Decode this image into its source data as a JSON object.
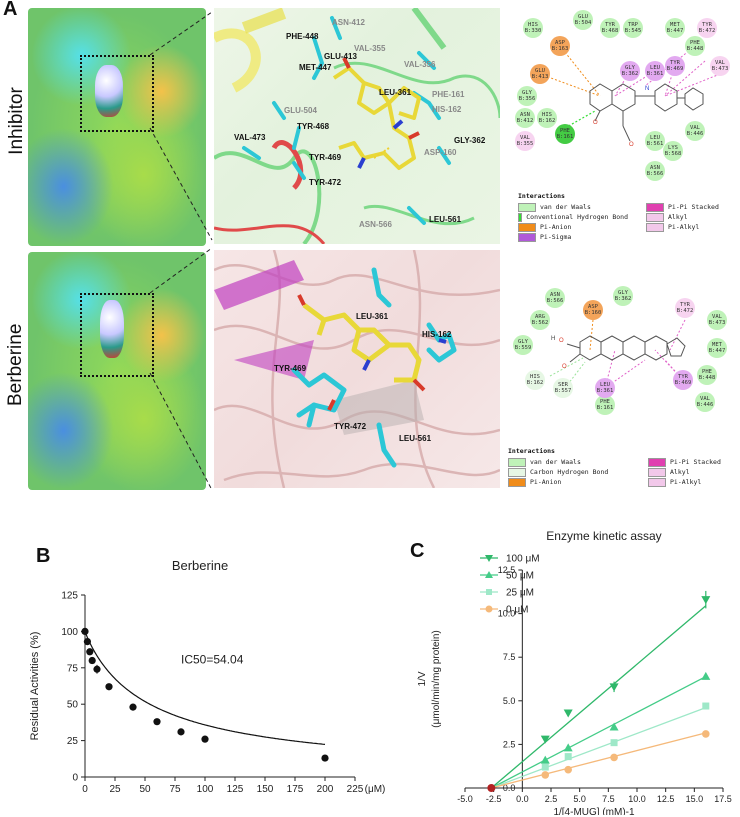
{
  "panels": {
    "a_letter": "A",
    "b_letter": "B",
    "c_letter": "C"
  },
  "rows": {
    "inhibitor": "Inhibitor",
    "berberine": "Berberine"
  },
  "inhibitor_3d_residues": [
    "PHE-448",
    "ASN-412",
    "MET-447",
    "GLU-413",
    "VAL-355",
    "VAL-356",
    "GLU-504",
    "LEU-361",
    "PHE-161",
    "HIS-162",
    "TYR-468",
    "VAL-473",
    "GLY-362",
    "TYR-469",
    "ASP-160",
    "TYR-472",
    "ASN-566",
    "LEU-561",
    "HIS-330",
    "LYS-568"
  ],
  "berberine_3d_residues": [
    "LEU-361",
    "HIS-162",
    "TYR-469",
    "TYR-472",
    "LEU-561"
  ],
  "inhibitor_2d_nodes": [
    {
      "id": "HIS\nB:330",
      "c": "#bff2b8"
    },
    {
      "id": "GLU\nB:504",
      "c": "#bff2b8"
    },
    {
      "id": "TYR\nB:468",
      "c": "#bff2b8"
    },
    {
      "id": "TRP\nB:545",
      "c": "#bff2b8"
    },
    {
      "id": "MET\nB:447",
      "c": "#bff2b8"
    },
    {
      "id": "TYR\nB:472",
      "c": "#f7d4f0"
    },
    {
      "id": "ASP\nB:163",
      "c": "#f3a45a"
    },
    {
      "id": "PHE\nB:448",
      "c": "#bff2b8"
    },
    {
      "id": "VAL\nB:473",
      "c": "#f7d4f0"
    },
    {
      "id": "GLU\nB:413",
      "c": "#f3a45a"
    },
    {
      "id": "GLY\nB:356",
      "c": "#bff2b8"
    },
    {
      "id": "LEU\nB:361",
      "c": "#e2a9f0"
    },
    {
      "id": "GLY\nB:362",
      "c": "#e2a9f0"
    },
    {
      "id": "TYR\nB:469",
      "c": "#e2a9f0"
    },
    {
      "id": "ASN\nB:412",
      "c": "#bff2b8"
    },
    {
      "id": "HIS\nB:162",
      "c": "#bff2b8"
    },
    {
      "id": "VAL\nB:355",
      "c": "#f7d4f0"
    },
    {
      "id": "PHE\nB:161",
      "c": "#44cc44"
    },
    {
      "id": "LEU\nB:561",
      "c": "#bff2b8"
    },
    {
      "id": "LYS\nB:568",
      "c": "#bff2b8"
    },
    {
      "id": "VAL\nB:446",
      "c": "#bff2b8"
    },
    {
      "id": "ASN\nB:566",
      "c": "#bff2b8"
    }
  ],
  "berberine_2d_nodes": [
    {
      "id": "ASN\nB:566",
      "c": "#bff2b8"
    },
    {
      "id": "ASP\nB:160",
      "c": "#f3a45a"
    },
    {
      "id": "GLY\nB:362",
      "c": "#bff2b8"
    },
    {
      "id": "TYR\nB:472",
      "c": "#f7d4f0"
    },
    {
      "id": "ARG\nB:562",
      "c": "#bff2b8"
    },
    {
      "id": "VAL\nB:473",
      "c": "#bff2b8"
    },
    {
      "id": "GLY\nB:559",
      "c": "#bff2b8"
    },
    {
      "id": "MET\nB:447",
      "c": "#bff2b8"
    },
    {
      "id": "HIS\nB:162",
      "c": "#e6f7e4"
    },
    {
      "id": "TYR\nB:469",
      "c": "#e2a9f0"
    },
    {
      "id": "PHE\nB:448",
      "c": "#bff2b8"
    },
    {
      "id": "SER\nB:557",
      "c": "#e6f7e4"
    },
    {
      "id": "PHE\nB:161",
      "c": "#bff2b8"
    },
    {
      "id": "LEU\nB:361",
      "c": "#e2a9f0"
    },
    {
      "id": "VAL\nB:446",
      "c": "#bff2b8"
    }
  ],
  "legend_inhibitor": {
    "title": "Interactions",
    "items": [
      {
        "label": "van der Waals",
        "color": "#bff2b8"
      },
      {
        "label": "Conventional Hydrogen Bond",
        "color": "#33dd33"
      },
      {
        "label": "Pi-Anion",
        "color": "#f08c1a"
      },
      {
        "label": "Pi-Sigma",
        "color": "#b05ad8"
      },
      {
        "label": "Pi-Pi Stacked",
        "color": "#e040b0"
      },
      {
        "label": "Alkyl",
        "color": "#f2c8ea"
      },
      {
        "label": "Pi-Alkyl",
        "color": "#f2c8ea"
      }
    ]
  },
  "legend_berberine": {
    "title": "Interactions",
    "items": [
      {
        "label": "van der Waals",
        "color": "#bff2b8"
      },
      {
        "label": "Carbon Hydrogen Bond",
        "color": "#e6f7e4"
      },
      {
        "label": "Pi-Anion",
        "color": "#f08c1a"
      },
      {
        "label": "Pi-Pi Stacked",
        "color": "#e040b0"
      },
      {
        "label": "Alkyl",
        "color": "#f2c8ea"
      },
      {
        "label": "Pi-Alkyl",
        "color": "#f2c8ea"
      }
    ]
  },
  "chart_data": [
    {
      "type": "scatter",
      "title": "Berberine",
      "ylabel": "Residual Activities (%)",
      "xlabel": "",
      "x_unit": "(μM)",
      "annotation": "IC50=54.04",
      "xlim": [
        0,
        225
      ],
      "ylim": [
        0,
        125
      ],
      "xticks": [
        0,
        25,
        50,
        75,
        100,
        125,
        150,
        175,
        200,
        225
      ],
      "yticks": [
        0,
        25,
        50,
        75,
        100,
        125
      ],
      "points": [
        {
          "x": 0,
          "y": 100
        },
        {
          "x": 2,
          "y": 93
        },
        {
          "x": 4,
          "y": 86
        },
        {
          "x": 6,
          "y": 80
        },
        {
          "x": 10,
          "y": 74
        },
        {
          "x": 20,
          "y": 62
        },
        {
          "x": 40,
          "y": 48
        },
        {
          "x": 60,
          "y": 38
        },
        {
          "x": 80,
          "y": 31
        },
        {
          "x": 100,
          "y": 26
        },
        {
          "x": 200,
          "y": 13
        }
      ],
      "fit_curve": true
    },
    {
      "type": "line",
      "title": "Enzyme kinetic assay",
      "ylabel": "1/V",
      "ylabel2": "(μmol/min/mg protein)",
      "xlabel": "1/[4-MUG] (mM)-1",
      "xlim": [
        -5,
        17.5
      ],
      "ylim": [
        0,
        12.5
      ],
      "xticks": [
        -5.0,
        -2.5,
        0.0,
        2.5,
        5.0,
        7.5,
        10.0,
        12.5,
        15.0,
        17.5
      ],
      "yticks": [
        0.0,
        2.5,
        5.0,
        7.5,
        10.0,
        12.5
      ],
      "intercept_x": -2.7,
      "series": [
        {
          "name": "100 μM",
          "color": "#2fb86a",
          "marker": "tri-down",
          "x": [
            2,
            4,
            8,
            16
          ],
          "y": [
            2.8,
            4.3,
            5.8,
            10.8
          ]
        },
        {
          "name": "50 μM",
          "color": "#44cc88",
          "marker": "tri-up",
          "x": [
            2,
            4,
            8,
            16
          ],
          "y": [
            1.6,
            2.3,
            3.5,
            6.4
          ]
        },
        {
          "name": "25 μM",
          "color": "#9ee8c8",
          "marker": "square",
          "x": [
            2,
            4,
            8,
            16
          ],
          "y": [
            1.2,
            1.8,
            2.6,
            4.7
          ]
        },
        {
          "name": "0 μM",
          "color": "#f5b97a",
          "marker": "circle",
          "x": [
            2,
            4,
            8,
            16
          ],
          "y": [
            0.75,
            1.05,
            1.75,
            3.1
          ]
        }
      ]
    }
  ]
}
